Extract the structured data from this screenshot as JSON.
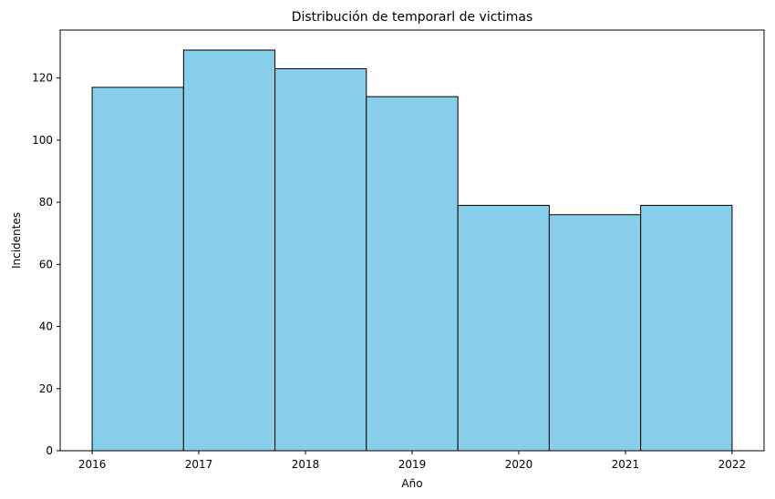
{
  "chart_data": {
    "type": "bar",
    "title": "Distribución de temporarl de victimas",
    "xlabel": "Año",
    "ylabel": "Incidentes",
    "bins": [
      {
        "start": 2016.0,
        "end": 2016.857,
        "value": 117
      },
      {
        "start": 2016.857,
        "end": 2017.714,
        "value": 129
      },
      {
        "start": 2017.714,
        "end": 2018.571,
        "value": 123
      },
      {
        "start": 2018.571,
        "end": 2019.429,
        "value": 114
      },
      {
        "start": 2019.429,
        "end": 2020.286,
        "value": 79
      },
      {
        "start": 2020.286,
        "end": 2021.143,
        "value": 76
      },
      {
        "start": 2021.143,
        "end": 2022.0,
        "value": 79
      }
    ],
    "xticks": [
      "2016",
      "2017",
      "2018",
      "2019",
      "2020",
      "2021",
      "2022"
    ],
    "yticks": [
      "0",
      "20",
      "40",
      "60",
      "80",
      "100",
      "120"
    ],
    "xlim": [
      2015.7,
      2022.3
    ],
    "ylim": [
      0,
      135.45
    ],
    "grid": false,
    "colors": {
      "bar_fill": "#87CEEB",
      "bar_edge": "#000000"
    }
  }
}
